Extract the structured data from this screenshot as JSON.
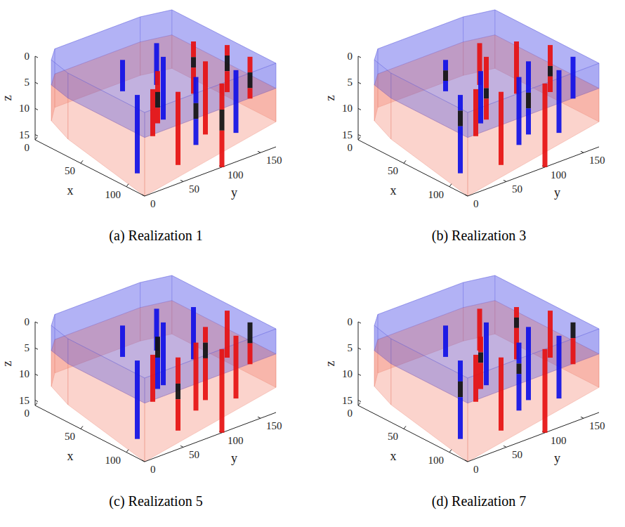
{
  "chart_data": [
    {
      "type": "volume",
      "title": "(a) Realization 1",
      "xlabel": "x",
      "ylabel": "y",
      "zlabel": "z",
      "xlim": [
        0,
        120
      ],
      "ylim": [
        0,
        170
      ],
      "zlim": [
        0,
        16
      ],
      "xticks": [
        0,
        50,
        100
      ],
      "yticks": [
        0,
        50,
        100,
        150
      ],
      "zticks": [
        0,
        5,
        10,
        15
      ],
      "wells": [
        {
          "x": 95,
          "y": 20,
          "segments": [
            {
              "from": 0,
              "to": 15,
              "color": "#1010e6"
            }
          ]
        },
        {
          "x": 95,
          "y": 40,
          "segments": [
            {
              "from": 0,
              "to": 9,
              "color": "#e61010"
            }
          ]
        },
        {
          "x": 45,
          "y": 60,
          "segments": [
            {
              "from": 0,
              "to": 6,
              "color": "#1010e6"
            }
          ]
        },
        {
          "x": 110,
          "y": 55,
          "segments": [
            {
              "from": 0,
              "to": 14,
              "color": "#e61010"
            }
          ]
        },
        {
          "x": 75,
          "y": 70,
          "segments": [
            {
              "from": 0,
              "to": 4,
              "color": "#e61010"
            },
            {
              "from": 4,
              "to": 7,
              "color": "#101010"
            },
            {
              "from": 7,
              "to": 10,
              "color": "#e61010"
            }
          ]
        },
        {
          "x": 60,
          "y": 95,
          "segments": [
            {
              "from": 0,
              "to": 12,
              "color": "#1010e6"
            }
          ]
        },
        {
          "x": 100,
          "y": 90,
          "segments": [
            {
              "from": 0,
              "to": 5,
              "color": "#1010e6"
            },
            {
              "from": 5,
              "to": 8,
              "color": "#101010"
            },
            {
              "from": 8,
              "to": 13,
              "color": "#1010e6"
            }
          ]
        },
        {
          "x": 40,
          "y": 110,
          "segments": [
            {
              "from": 0,
              "to": 8,
              "color": "#1010e6"
            }
          ]
        },
        {
          "x": 85,
          "y": 120,
          "segments": [
            {
              "from": 0,
              "to": 14,
              "color": "#e61010"
            }
          ]
        },
        {
          "x": 55,
          "y": 140,
          "segments": [
            {
              "from": 0,
              "to": 3,
              "color": "#e61010"
            },
            {
              "from": 3,
              "to": 5,
              "color": "#101010"
            },
            {
              "from": 5,
              "to": 10,
              "color": "#e61010"
            }
          ]
        },
        {
          "x": 110,
          "y": 130,
          "segments": [
            {
              "from": 0,
              "to": 12,
              "color": "#1010e6"
            }
          ]
        },
        {
          "x": 75,
          "y": 160,
          "segments": [
            {
              "from": 0,
              "to": 2,
              "color": "#e61010"
            },
            {
              "from": 2,
              "to": 5,
              "color": "#101010"
            },
            {
              "from": 5,
              "to": 9,
              "color": "#e61010"
            }
          ]
        },
        {
          "x": 100,
          "y": 160,
          "segments": [
            {
              "from": 0,
              "to": 3,
              "color": "#e61010"
            },
            {
              "from": 3,
              "to": 6,
              "color": "#101010"
            },
            {
              "from": 6,
              "to": 8,
              "color": "#e61010"
            }
          ]
        },
        {
          "x": 120,
          "y": 100,
          "segments": [
            {
              "from": 0,
              "to": 5,
              "color": "#e61010"
            },
            {
              "from": 5,
              "to": 9,
              "color": "#101010"
            },
            {
              "from": 9,
              "to": 16,
              "color": "#e61010"
            }
          ]
        }
      ]
    },
    {
      "type": "volume",
      "title": "(b) Realization 3",
      "xlabel": "x",
      "ylabel": "y",
      "zlabel": "z",
      "xlim": [
        0,
        120
      ],
      "ylim": [
        0,
        170
      ],
      "zlim": [
        0,
        16
      ],
      "xticks": [
        0,
        50,
        100
      ],
      "yticks": [
        0,
        50,
        100,
        150
      ],
      "zticks": [
        0,
        5,
        10,
        15
      ],
      "wells": [
        {
          "x": 95,
          "y": 20,
          "segments": [
            {
              "from": 0,
              "to": 3,
              "color": "#1010e6"
            },
            {
              "from": 3,
              "to": 6,
              "color": "#101010"
            },
            {
              "from": 6,
              "to": 15,
              "color": "#1010e6"
            }
          ]
        },
        {
          "x": 95,
          "y": 40,
          "segments": [
            {
              "from": 0,
              "to": 9,
              "color": "#e61010"
            }
          ]
        },
        {
          "x": 45,
          "y": 60,
          "segments": [
            {
              "from": 0,
              "to": 2,
              "color": "#1010e6"
            },
            {
              "from": 2,
              "to": 4,
              "color": "#101010"
            },
            {
              "from": 4,
              "to": 6,
              "color": "#1010e6"
            }
          ]
        },
        {
          "x": 110,
          "y": 55,
          "segments": [
            {
              "from": 0,
              "to": 14,
              "color": "#e61010"
            }
          ]
        },
        {
          "x": 75,
          "y": 70,
          "segments": [
            {
              "from": 0,
              "to": 10,
              "color": "#1010e6"
            }
          ]
        },
        {
          "x": 60,
          "y": 95,
          "segments": [
            {
              "from": 0,
              "to": 6,
              "color": "#e61010"
            },
            {
              "from": 6,
              "to": 8,
              "color": "#101010"
            },
            {
              "from": 8,
              "to": 12,
              "color": "#e61010"
            }
          ]
        },
        {
          "x": 100,
          "y": 90,
          "segments": [
            {
              "from": 0,
              "to": 13,
              "color": "#1010e6"
            }
          ]
        },
        {
          "x": 40,
          "y": 110,
          "segments": [
            {
              "from": 0,
              "to": 8,
              "color": "#e61010"
            }
          ]
        },
        {
          "x": 85,
          "y": 120,
          "segments": [
            {
              "from": 0,
              "to": 6,
              "color": "#1010e6"
            },
            {
              "from": 6,
              "to": 9,
              "color": "#101010"
            },
            {
              "from": 9,
              "to": 14,
              "color": "#1010e6"
            }
          ]
        },
        {
          "x": 55,
          "y": 140,
          "segments": [
            {
              "from": 0,
              "to": 10,
              "color": "#e61010"
            }
          ]
        },
        {
          "x": 110,
          "y": 130,
          "segments": [
            {
              "from": 0,
              "to": 12,
              "color": "#1010e6"
            }
          ]
        },
        {
          "x": 75,
          "y": 160,
          "segments": [
            {
              "from": 0,
              "to": 4,
              "color": "#e61010"
            },
            {
              "from": 4,
              "to": 6,
              "color": "#101010"
            },
            {
              "from": 6,
              "to": 9,
              "color": "#e61010"
            }
          ]
        },
        {
          "x": 100,
          "y": 160,
          "segments": [
            {
              "from": 0,
              "to": 8,
              "color": "#1010e6"
            }
          ]
        },
        {
          "x": 120,
          "y": 100,
          "segments": [
            {
              "from": 0,
              "to": 16,
              "color": "#e61010"
            }
          ]
        }
      ]
    },
    {
      "type": "volume",
      "title": "(c) Realization 5",
      "xlabel": "x",
      "ylabel": "y",
      "zlabel": "z",
      "xlim": [
        0,
        120
      ],
      "ylim": [
        0,
        170
      ],
      "zlim": [
        0,
        16
      ],
      "xticks": [
        0,
        50,
        100
      ],
      "yticks": [
        0,
        50,
        100,
        150
      ],
      "zticks": [
        0,
        5,
        10,
        15
      ],
      "wells": [
        {
          "x": 95,
          "y": 20,
          "segments": [
            {
              "from": 0,
              "to": 15,
              "color": "#1010e6"
            }
          ]
        },
        {
          "x": 95,
          "y": 40,
          "segments": [
            {
              "from": 0,
              "to": 9,
              "color": "#e61010"
            }
          ]
        },
        {
          "x": 45,
          "y": 60,
          "segments": [
            {
              "from": 0,
              "to": 6,
              "color": "#1010e6"
            }
          ]
        },
        {
          "x": 110,
          "y": 55,
          "segments": [
            {
              "from": 0,
              "to": 5,
              "color": "#e61010"
            },
            {
              "from": 5,
              "to": 8,
              "color": "#101010"
            },
            {
              "from": 8,
              "to": 14,
              "color": "#e61010"
            }
          ]
        },
        {
          "x": 75,
          "y": 70,
          "segments": [
            {
              "from": 0,
              "to": 4,
              "color": "#101010"
            },
            {
              "from": 4,
              "to": 10,
              "color": "#1010e6"
            }
          ]
        },
        {
          "x": 60,
          "y": 95,
          "segments": [
            {
              "from": 0,
              "to": 12,
              "color": "#1010e6"
            }
          ]
        },
        {
          "x": 100,
          "y": 90,
          "segments": [
            {
              "from": 0,
              "to": 13,
              "color": "#e61010"
            }
          ]
        },
        {
          "x": 40,
          "y": 110,
          "segments": [
            {
              "from": 0,
              "to": 8,
              "color": "#1010e6"
            }
          ]
        },
        {
          "x": 85,
          "y": 120,
          "segments": [
            {
              "from": 0,
              "to": 3,
              "color": "#e61010"
            },
            {
              "from": 3,
              "to": 6,
              "color": "#101010"
            },
            {
              "from": 6,
              "to": 14,
              "color": "#e61010"
            }
          ]
        },
        {
          "x": 55,
          "y": 140,
          "segments": [
            {
              "from": 0,
              "to": 10,
              "color": "#1010e6"
            }
          ]
        },
        {
          "x": 110,
          "y": 130,
          "segments": [
            {
              "from": 0,
              "to": 12,
              "color": "#e61010"
            }
          ]
        },
        {
          "x": 75,
          "y": 160,
          "segments": [
            {
              "from": 0,
              "to": 9,
              "color": "#e61010"
            }
          ]
        },
        {
          "x": 100,
          "y": 160,
          "segments": [
            {
              "from": 0,
              "to": 4,
              "color": "#101010"
            },
            {
              "from": 4,
              "to": 8,
              "color": "#e61010"
            }
          ]
        },
        {
          "x": 120,
          "y": 100,
          "segments": [
            {
              "from": 0,
              "to": 16,
              "color": "#e61010"
            }
          ]
        }
      ]
    },
    {
      "type": "volume",
      "title": "(d) Realization 7",
      "xlabel": "x",
      "ylabel": "y",
      "zlabel": "z",
      "xlim": [
        0,
        120
      ],
      "ylim": [
        0,
        170
      ],
      "zlim": [
        0,
        16
      ],
      "xticks": [
        0,
        50,
        100
      ],
      "yticks": [
        0,
        50,
        100,
        150
      ],
      "zticks": [
        0,
        5,
        10,
        15
      ],
      "wells": [
        {
          "x": 95,
          "y": 20,
          "segments": [
            {
              "from": 0,
              "to": 4,
              "color": "#1010e6"
            },
            {
              "from": 4,
              "to": 7,
              "color": "#101010"
            },
            {
              "from": 7,
              "to": 15,
              "color": "#1010e6"
            }
          ]
        },
        {
          "x": 95,
          "y": 40,
          "segments": [
            {
              "from": 0,
              "to": 9,
              "color": "#e61010"
            }
          ]
        },
        {
          "x": 45,
          "y": 60,
          "segments": [
            {
              "from": 0,
              "to": 6,
              "color": "#1010e6"
            }
          ]
        },
        {
          "x": 110,
          "y": 55,
          "segments": [
            {
              "from": 0,
              "to": 14,
              "color": "#e61010"
            }
          ]
        },
        {
          "x": 75,
          "y": 70,
          "segments": [
            {
              "from": 0,
              "to": 3,
              "color": "#e61010"
            },
            {
              "from": 3,
              "to": 5,
              "color": "#101010"
            },
            {
              "from": 5,
              "to": 10,
              "color": "#e61010"
            }
          ]
        },
        {
          "x": 60,
          "y": 95,
          "segments": [
            {
              "from": 0,
              "to": 12,
              "color": "#1010e6"
            }
          ]
        },
        {
          "x": 100,
          "y": 90,
          "segments": [
            {
              "from": 0,
              "to": 4,
              "color": "#1010e6"
            },
            {
              "from": 4,
              "to": 6,
              "color": "#101010"
            },
            {
              "from": 6,
              "to": 13,
              "color": "#1010e6"
            }
          ]
        },
        {
          "x": 40,
          "y": 110,
          "segments": [
            {
              "from": 0,
              "to": 8,
              "color": "#e61010"
            }
          ]
        },
        {
          "x": 85,
          "y": 120,
          "segments": [
            {
              "from": 0,
              "to": 14,
              "color": "#1010e6"
            }
          ]
        },
        {
          "x": 55,
          "y": 140,
          "segments": [
            {
              "from": 0,
              "to": 2,
              "color": "#e61010"
            },
            {
              "from": 2,
              "to": 4,
              "color": "#101010"
            },
            {
              "from": 4,
              "to": 10,
              "color": "#e61010"
            }
          ]
        },
        {
          "x": 110,
          "y": 130,
          "segments": [
            {
              "from": 0,
              "to": 12,
              "color": "#1010e6"
            }
          ]
        },
        {
          "x": 75,
          "y": 160,
          "segments": [
            {
              "from": 0,
              "to": 9,
              "color": "#e61010"
            }
          ]
        },
        {
          "x": 100,
          "y": 160,
          "segments": [
            {
              "from": 0,
              "to": 3,
              "color": "#101010"
            },
            {
              "from": 3,
              "to": 8,
              "color": "#e61010"
            }
          ]
        },
        {
          "x": 120,
          "y": 100,
          "segments": [
            {
              "from": 0,
              "to": 16,
              "color": "#e61010"
            }
          ]
        }
      ]
    }
  ]
}
